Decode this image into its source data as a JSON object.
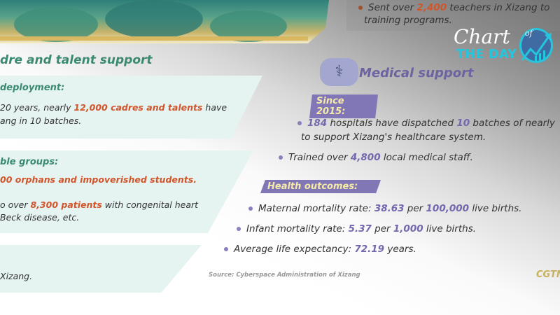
{
  "left": {
    "section_title": "dre and talent support",
    "panels": [
      {
        "subtitle": "deployment:",
        "lines": [
          {
            "pre": "20 years, nearly ",
            "hl": "12,000 cadres and talents",
            "post": " have"
          },
          {
            "pre": "ang in 10 batches.",
            "hl": "",
            "post": ""
          }
        ]
      },
      {
        "subtitle": "ble groups:",
        "lines": [
          {
            "pre": "",
            "hl": "00 orphans and impoverished students.",
            "post": ""
          },
          {
            "pre": "o over ",
            "hl": "8,300 patients",
            "post": " with congenital heart"
          },
          {
            "pre": "Beck disease, etc.",
            "hl": "",
            "post": ""
          }
        ]
      },
      {
        "subtitle": "",
        "lines": [
          {
            "pre": "Xizang.",
            "hl": "",
            "post": ""
          }
        ]
      }
    ]
  },
  "right": {
    "teachers": {
      "pre": "Sent over ",
      "hl": "2,400",
      "post": " teachers in Xizang to",
      "line2": "training programs."
    },
    "medical_title": "Medical support",
    "since_label": "Since 2015:",
    "since_items": [
      {
        "n1": "184",
        "t1": " hospitals have dispatched ",
        "n2": "10",
        "t2": " batches of nearly",
        "line2": "to support Xizang's healthcare system."
      },
      {
        "t0": "Trained over ",
        "n1": "4,800",
        "t1": " local medical staff."
      }
    ],
    "outcomes_label": "Health outcomes:",
    "outcomes": [
      {
        "t0": "Maternal mortality rate: ",
        "n1": "38.63",
        "t1": " per ",
        "n2": "100,000",
        "t2": " live births."
      },
      {
        "t0": "Infant mortality rate: ",
        "n1": "5.37",
        "t1": " per ",
        "n2": "1,000",
        "t2": " live births."
      },
      {
        "t0": "Average life expectancy: ",
        "n1": "72.19",
        "t1": " years."
      }
    ],
    "source": "Source: Cyberspace Administration of Xizang",
    "brand": "CGTN"
  },
  "logo": {
    "line1": "Chart",
    "of": "of",
    "line2": "THE DAY"
  },
  "colors": {
    "green": "#3a8a72",
    "orange": "#d2552a",
    "purple": "#7367ad",
    "cyan": "#25c6dd"
  }
}
